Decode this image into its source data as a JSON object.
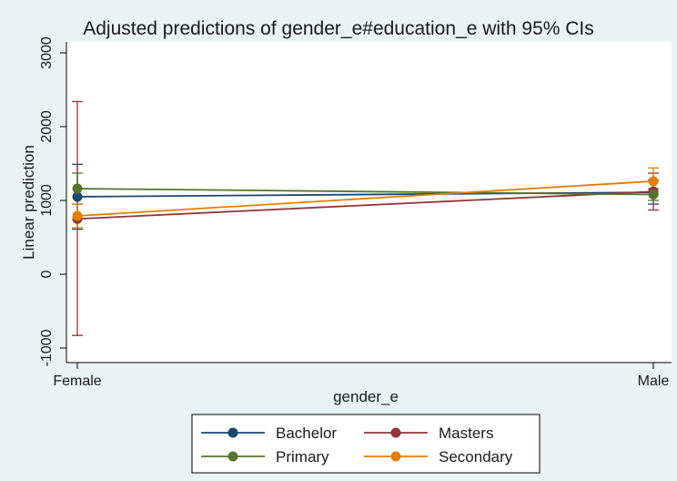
{
  "chart_data": {
    "type": "line",
    "title": "Adjusted predictions of gender_e#education_e with 95% CIs",
    "xlabel": "gender_e",
    "ylabel": "Linear prediction",
    "categories": [
      "Female",
      "Male"
    ],
    "y_ticks": [
      -1000,
      0,
      1000,
      2000,
      3000
    ],
    "ylim": [
      -1080,
      3000
    ],
    "grid": false,
    "legend_position": "bottom",
    "series": [
      {
        "name": "Bachelor",
        "color": "#1a476f",
        "values": [
          1050,
          1110
        ],
        "ci_low": [
          610,
          950
        ],
        "ci_high": [
          1490,
          1270
        ]
      },
      {
        "name": "Masters",
        "color": "#90353b",
        "values": [
          750,
          1120
        ],
        "ci_low": [
          -830,
          870
        ],
        "ci_high": [
          2340,
          1370
        ]
      },
      {
        "name": "Primary",
        "color": "#55752f",
        "values": [
          1160,
          1080
        ],
        "ci_low": [
          950,
          1000
        ],
        "ci_high": [
          1370,
          1160
        ]
      },
      {
        "name": "Secondary",
        "color": "#e37e00",
        "values": [
          790,
          1260
        ],
        "ci_low": [
          630,
          1080
        ],
        "ci_high": [
          950,
          1440
        ]
      }
    ]
  }
}
